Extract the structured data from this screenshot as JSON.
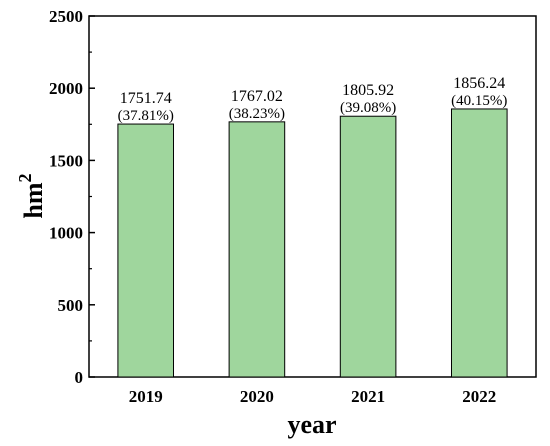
{
  "chart_data": {
    "type": "bar",
    "categories": [
      "2019",
      "2020",
      "2021",
      "2022"
    ],
    "values": [
      1751.74,
      1767.02,
      1805.92,
      1856.24
    ],
    "value_labels": [
      "1751.74",
      "1767.02",
      "1805.92",
      "1856.24"
    ],
    "percent_labels": [
      "(37.81%)",
      "(38.23%)",
      "(39.08%)",
      "(40.15%)"
    ],
    "xlabel": "year",
    "ylabel_base": "hm",
    "ylabel_exponent": "2",
    "ylim": [
      0,
      2500
    ],
    "yticks": [
      0,
      500,
      1000,
      1500,
      2000,
      2500
    ],
    "grid": false,
    "colors": {
      "bar_fill": "#9fd69d",
      "bar_stroke": "#000000",
      "axis": "#000000"
    }
  }
}
